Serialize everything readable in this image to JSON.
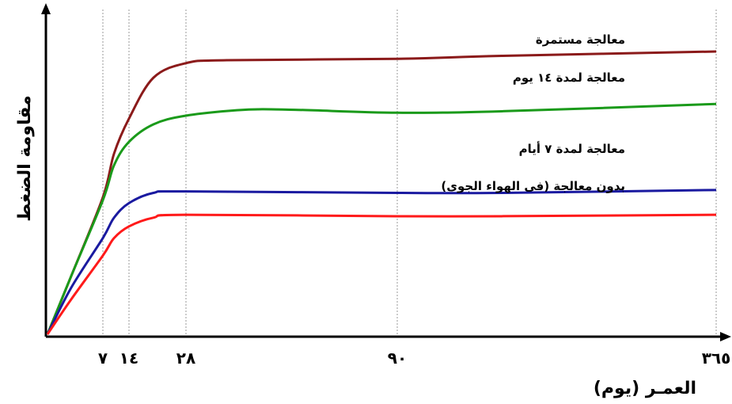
{
  "chart_data": {
    "type": "line",
    "xlabel": "العمـر (يوم)",
    "ylabel": "مقاومة الضغط",
    "x_ticks": [
      {
        "value": 7,
        "label": "٧"
      },
      {
        "value": 14,
        "label": "١٤"
      },
      {
        "value": 28,
        "label": "٢٨"
      },
      {
        "value": 90,
        "label": "٩٠"
      },
      {
        "value": 365,
        "label": "٣٦٥"
      }
    ],
    "grid_vertical": true,
    "series": [
      {
        "name": "معالجة مستمرة",
        "color": "#8b1a1a",
        "points": [
          [
            0,
            0
          ],
          [
            3,
            20
          ],
          [
            7,
            47
          ],
          [
            10,
            62
          ],
          [
            14,
            74
          ],
          [
            20,
            88
          ],
          [
            28,
            93
          ],
          [
            40,
            94
          ],
          [
            90,
            94.5
          ],
          [
            180,
            95.5
          ],
          [
            365,
            97
          ]
        ]
      },
      {
        "name": "معالجة لمدة ١٤ يوم",
        "color": "#1a9a1a",
        "points": [
          [
            0,
            0
          ],
          [
            3,
            20
          ],
          [
            7,
            46
          ],
          [
            10,
            58
          ],
          [
            14,
            66
          ],
          [
            20,
            72
          ],
          [
            28,
            75
          ],
          [
            45,
            77
          ],
          [
            60,
            77
          ],
          [
            90,
            76
          ],
          [
            180,
            76.5
          ],
          [
            365,
            79
          ]
        ]
      },
      {
        "name": "معالجة لمدة ٧ أيام",
        "color": "#1a1aa0",
        "points": [
          [
            0,
            0
          ],
          [
            3,
            16
          ],
          [
            7,
            33
          ],
          [
            10,
            40
          ],
          [
            14,
            45
          ],
          [
            20,
            48.5
          ],
          [
            28,
            49
          ],
          [
            90,
            48.5
          ],
          [
            180,
            48.5
          ],
          [
            365,
            49.5
          ]
        ]
      },
      {
        "name": "بدون معالجة (في الهواء الجوي)",
        "color": "#ff1a1a",
        "points": [
          [
            0,
            0
          ],
          [
            3,
            12
          ],
          [
            7,
            27
          ],
          [
            10,
            33
          ],
          [
            14,
            37
          ],
          [
            20,
            40
          ],
          [
            28,
            41
          ],
          [
            90,
            40.5
          ],
          [
            180,
            40.5
          ],
          [
            365,
            41
          ]
        ]
      }
    ],
    "label_text": [
      "معالجة مستمرة",
      "معالجة لمدة ١٤ يوم",
      "معالجة لمدة ٧ أيام",
      "بدون معالجة (فى الهواء الجوى)"
    ]
  }
}
